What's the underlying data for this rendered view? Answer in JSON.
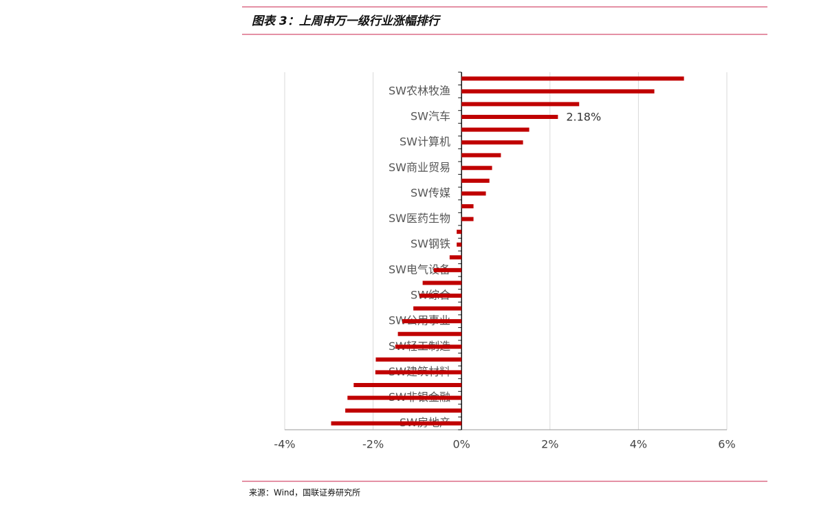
{
  "chart_data": {
    "type": "hbar",
    "title": "图表 3：上周申万一级行业涨幅排行",
    "source": "来源：Wind，国联证券研究所",
    "categories": [
      null,
      "SW农林牧渔",
      null,
      "SW汽车",
      null,
      "SW计算机",
      null,
      "SW商业贸易",
      null,
      "SW传媒",
      null,
      "SW医药生物",
      null,
      "SW钢铁",
      null,
      "SW电气设备",
      null,
      "SW综合",
      null,
      "SW公用事业",
      null,
      "SW轻工制造",
      null,
      "SW建筑材料",
      null,
      "SW非银金融",
      null,
      "SW房地产"
    ],
    "values": [
      5.03,
      4.36,
      2.66,
      2.18,
      1.53,
      1.39,
      0.89,
      0.69,
      0.63,
      0.55,
      0.27,
      0.27,
      -0.11,
      -0.11,
      -0.27,
      -0.63,
      -0.88,
      -0.95,
      -1.09,
      -1.34,
      -1.44,
      -1.5,
      -1.94,
      -1.95,
      -2.44,
      -2.58,
      -2.63,
      -2.95
    ],
    "value_labels": [
      null,
      null,
      null,
      "2.18%",
      null,
      null,
      null,
      null,
      null,
      null,
      null,
      null,
      null,
      null,
      null,
      null,
      null,
      null,
      null,
      null,
      null,
      null,
      null,
      null,
      null,
      null,
      null,
      null
    ],
    "color": "#c00000",
    "xlim": [
      -4,
      6
    ],
    "xticks": [
      {
        "value": -4,
        "label": "-4%"
      },
      {
        "value": -2,
        "label": "-2%"
      },
      {
        "value": 0,
        "label": "0%"
      },
      {
        "value": 2,
        "label": "2%"
      },
      {
        "value": 4,
        "label": "4%"
      },
      {
        "value": 6,
        "label": "6%"
      }
    ],
    "grid": true
  }
}
